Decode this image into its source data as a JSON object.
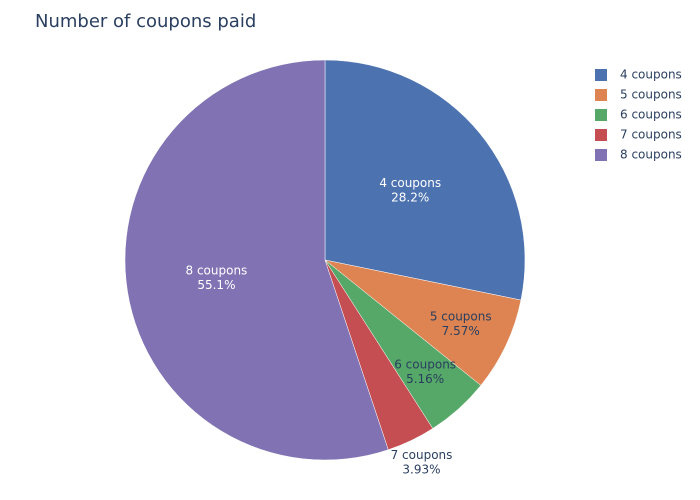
{
  "chart_data": {
    "type": "pie",
    "title": "Number of coupons paid",
    "categories": [
      "4 coupons",
      "5 coupons",
      "6 coupons",
      "7 coupons",
      "8 coupons"
    ],
    "values": [
      28.2,
      7.57,
      5.16,
      3.93,
      55.1
    ],
    "value_labels": [
      "28.2%",
      "7.57%",
      "5.16%",
      "3.93%",
      "55.1%"
    ],
    "colors": [
      "#4c72b0",
      "#dd8452",
      "#55a868",
      "#c44e52",
      "#8172b3"
    ],
    "legend": "top-right"
  }
}
